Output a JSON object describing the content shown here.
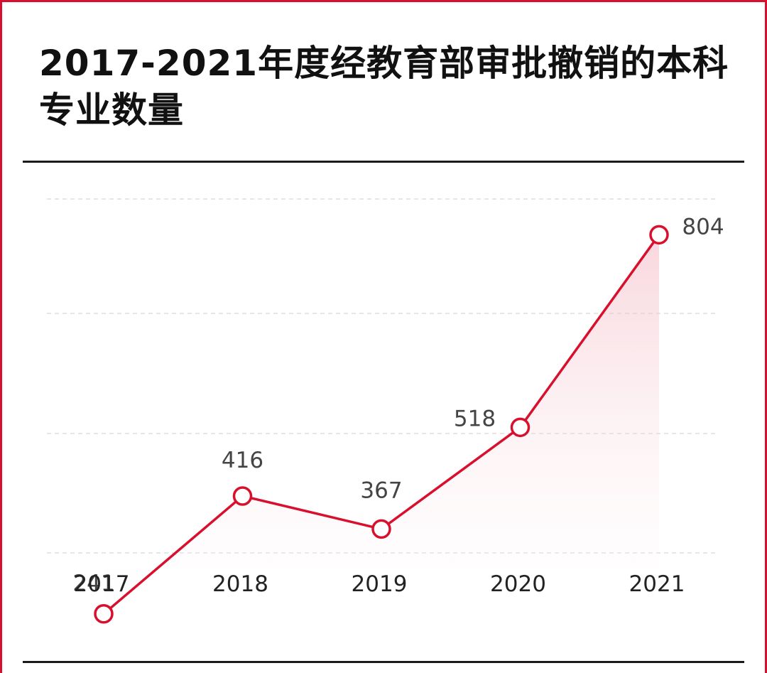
{
  "chart_data": {
    "type": "line",
    "title": "2017-2021年度经教育部审批撤销的本科专业数量",
    "categories": [
      "2017",
      "2018",
      "2019",
      "2020",
      "2021"
    ],
    "values": [
      241,
      416,
      367,
      518,
      804
    ],
    "data_labels": [
      "241",
      "416",
      "367",
      "518",
      "804"
    ],
    "ylim": [
      150,
      950
    ],
    "grid": true,
    "legend": "none",
    "xlabel": "",
    "ylabel": ""
  },
  "colors": {
    "accent": "#d8102d",
    "area_fill": "#f5c6cf",
    "grid": "#dddddd",
    "text": "#111111"
  }
}
